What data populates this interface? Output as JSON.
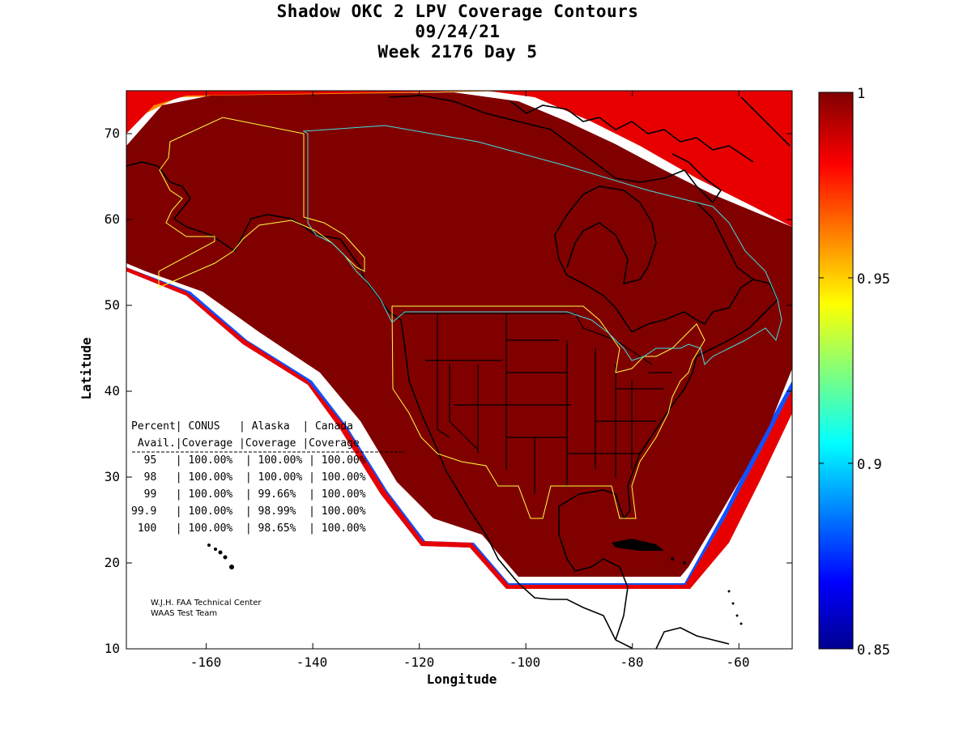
{
  "title": {
    "line1": "Shadow OKC 2 LPV Coverage Contours",
    "line2": "09/24/21",
    "line3": "Week 2176 Day 5"
  },
  "axes": {
    "xlabel": "Longitude",
    "ylabel": "Latitude",
    "xlim": [
      -175,
      -50
    ],
    "ylim": [
      10,
      75
    ],
    "xticks": [
      "-160",
      "-140",
      "-120",
      "-100",
      "-80",
      "-60"
    ],
    "yticks": [
      "10",
      "20",
      "30",
      "40",
      "50",
      "60",
      "70"
    ]
  },
  "colorbar": {
    "range": [
      0.85,
      1
    ],
    "ticks": [
      "0.85",
      "0.9",
      "0.95",
      "1"
    ],
    "colormap": "jet"
  },
  "table": {
    "header1": "Percent| CONUS   | Alaska  | Canada",
    "header2": " Avail.|Coverage |Coverage |Coverage",
    "rows": [
      "  95   | 100.00%  | 100.00% | 100.00%",
      "  98   | 100.00%  | 100.00% | 100.00%",
      "  99   | 100.00%  | 99.66%  | 100.00%",
      "99.9   | 100.00%  | 98.99%  | 100.00%",
      " 100   | 100.00%  | 98.65%  | 100.00%"
    ]
  },
  "credit": {
    "line1": "W.J.H. FAA Technical Center",
    "line2": "WAAS Test Team"
  },
  "colors": {
    "coverage_full": "#800000",
    "state_borders": "#000000",
    "conus_alaska_boundary": "#ffff40",
    "canada_boundary": "#40e0e0"
  }
}
